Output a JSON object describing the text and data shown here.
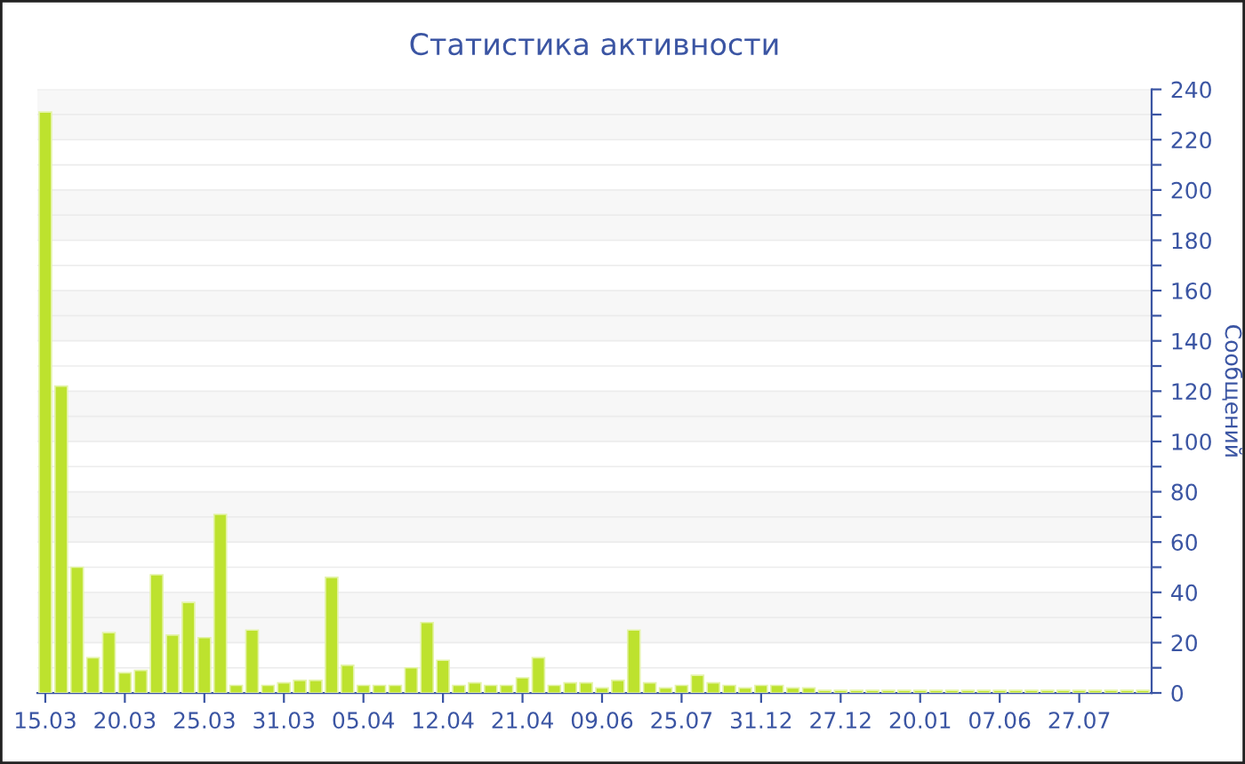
{
  "chart_data": {
    "type": "bar",
    "title": "Статистика активности",
    "ylabel": "Сообщений",
    "categories": [
      "15.03",
      null,
      null,
      null,
      null,
      "20.03",
      null,
      null,
      null,
      null,
      "25.03",
      null,
      null,
      null,
      null,
      "31.03",
      null,
      null,
      null,
      null,
      "05.04",
      null,
      null,
      null,
      null,
      "12.04",
      null,
      null,
      null,
      null,
      "21.04",
      null,
      null,
      null,
      null,
      "09.06",
      null,
      null,
      null,
      null,
      "25.07",
      null,
      null,
      null,
      null,
      "31.12",
      null,
      null,
      null,
      null,
      "27.12",
      null,
      null,
      null,
      null,
      "20.01",
      null,
      null,
      null,
      null,
      "07.06",
      null,
      null,
      null,
      null,
      "27.07",
      null,
      null,
      null,
      null
    ],
    "values": [
      231,
      122,
      50,
      14,
      24,
      8,
      9,
      47,
      23,
      36,
      22,
      71,
      3,
      25,
      3,
      4,
      5,
      5,
      46,
      11,
      3,
      3,
      3,
      10,
      28,
      13,
      3,
      4,
      3,
      3,
      6,
      14,
      3,
      4,
      4,
      2,
      5,
      25,
      4,
      2,
      3,
      7,
      4,
      3,
      2,
      3,
      3,
      2,
      2,
      1,
      1,
      1,
      1,
      1,
      1,
      1,
      1,
      1,
      1,
      1,
      1,
      1,
      1,
      1,
      1,
      1,
      1,
      1,
      1,
      1
    ],
    "color": "#bde22e",
    "ylim": [
      0,
      240
    ],
    "yticks": [
      0,
      {
        "value": 10,
        "label": null
      },
      20,
      {
        "value": 30,
        "label": null
      },
      40,
      {
        "value": 50,
        "label": null
      },
      60,
      {
        "value": 70,
        "label": null
      },
      80,
      {
        "value": 90,
        "label": null
      },
      100,
      {
        "value": 110,
        "label": null
      },
      120,
      {
        "value": 130,
        "label": null
      },
      140,
      {
        "value": 150,
        "label": null
      },
      160,
      {
        "value": 170,
        "label": null
      },
      180,
      {
        "value": 190,
        "label": null
      },
      200,
      {
        "value": 210,
        "label": null
      },
      220,
      {
        "value": 230,
        "label": null
      },
      240
    ],
    "grid": "y",
    "legend": false
  }
}
